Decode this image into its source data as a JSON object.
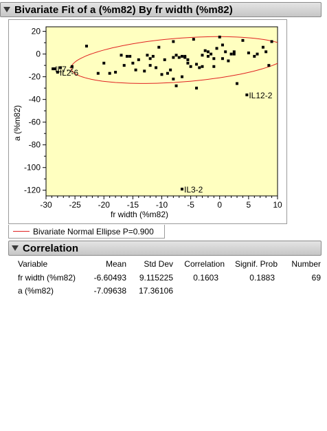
{
  "report": {
    "title": "Bivariate Fit of a (%m82) By fr width (%m82)",
    "legend_label": "Bivariate Normal Ellipse P=0.900",
    "legend_color": "#e02020"
  },
  "chart_data": {
    "type": "scatter",
    "xlabel": "fr width (%m82)",
    "ylabel": "a (%m82)",
    "xlim": [
      -30,
      10
    ],
    "ylim": [
      -125,
      24
    ],
    "xticks": [
      -30,
      -25,
      -20,
      -15,
      -10,
      -5,
      0,
      5,
      10
    ],
    "yticks": [
      20,
      0,
      -20,
      -40,
      -60,
      -80,
      -100,
      -120
    ],
    "background": "#ffffc0",
    "point_color": "#000000",
    "ellipse": {
      "probability": 0.9,
      "color": "#e02020"
    },
    "x": [
      -28.5,
      -27.5,
      -25.5,
      -23.0,
      -21.0,
      -20.0,
      -19.0,
      -17.0,
      -16.5,
      -16.0,
      -15.5,
      -15.0,
      -14.5,
      -13.0,
      -12.5,
      -12.0,
      -11.5,
      -11.0,
      -10.5,
      -10.0,
      -9.5,
      -8.5,
      -8.0,
      -7.5,
      -7.0,
      -6.5,
      -6.0,
      -5.5,
      -5.0,
      -4.5,
      -4.0,
      -3.5,
      -3.0,
      -2.5,
      -2.0,
      -1.5,
      -1.0,
      -0.5,
      0.0,
      0.5,
      1.0,
      1.5,
      2.0,
      2.5,
      3.0,
      4.0,
      5.0,
      6.0,
      6.5,
      7.5,
      8.0,
      8.5,
      9.0,
      -18.0,
      -14.0,
      -12.0,
      -9.0,
      -8.0,
      -7.5,
      -6.5,
      -5.5,
      -4.0,
      -3.0,
      -2.0,
      -1.0,
      0.5,
      2.5,
      -8.0,
      -6.0
    ],
    "y": [
      -13,
      -12,
      -11,
      7,
      -17,
      -8,
      -17,
      -1,
      -10,
      -2,
      -2,
      -8,
      -14,
      -15,
      -1,
      -4,
      -2,
      -12,
      6,
      -18,
      -5,
      -14,
      11,
      -1,
      -3,
      -2,
      -2,
      -5,
      -11,
      13,
      -9,
      -12,
      -1,
      3,
      -2,
      0,
      -11,
      5,
      15,
      8,
      2,
      -6,
      0,
      2,
      -26,
      12,
      1,
      -2,
      0,
      6,
      2,
      -10,
      11,
      -16,
      -5,
      -10,
      -17,
      -22,
      -28,
      -20,
      -8,
      -30,
      -11,
      2,
      -4,
      -4,
      0,
      -3,
      -3
    ],
    "labels": [
      {
        "text": "IL7-2",
        "x": -28.8,
        "y": -13
      },
      {
        "text": "IL2-6",
        "x": -28.0,
        "y": -16
      },
      {
        "text": "IL12-2",
        "x": 4.7,
        "y": -36
      },
      {
        "text": "IL3-2",
        "x": -6.5,
        "y": -119
      }
    ]
  },
  "correlation": {
    "title": "Correlation",
    "headers": [
      "Variable",
      "Mean",
      "Std Dev",
      "Correlation",
      "Signif. Prob",
      "Number"
    ],
    "rows": [
      [
        "fr width (%m82)",
        "-6.60493",
        "9.115225",
        "0.1603",
        "0.1883",
        "69"
      ],
      [
        "a (%m82)",
        "-7.09638",
        "17.36106",
        "",
        "",
        ""
      ]
    ]
  }
}
